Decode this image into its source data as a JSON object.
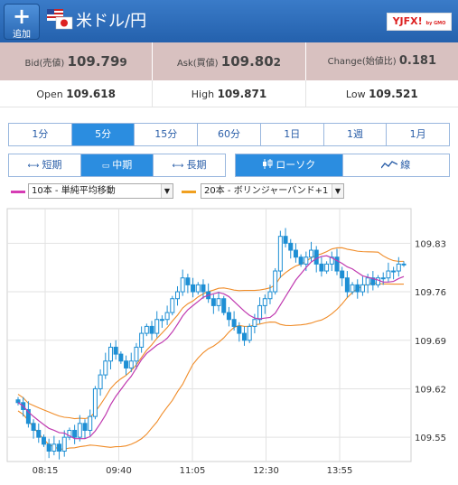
{
  "header": {
    "add_label": "追加",
    "pair_name": "米ドル/円",
    "logo_text": "YJFX!",
    "logo_sub": "by GMO",
    "flag_icons": [
      "us-flag-icon",
      "jp-flag-icon"
    ]
  },
  "quotes": {
    "bid_label": "Bid(売値)",
    "bid_main": "109.79",
    "bid_last": "9",
    "ask_label": "Ask(買値)",
    "ask_main": "109.80",
    "ask_last": "2",
    "change_label": "Change(始値比)",
    "change_value": "0.181"
  },
  "ohl": {
    "open_label": "Open",
    "open_value": "109.618",
    "high_label": "High",
    "high_value": "109.871",
    "low_label": "Low",
    "low_value": "109.521"
  },
  "periods": [
    {
      "label": "1分",
      "active": false
    },
    {
      "label": "5分",
      "active": true
    },
    {
      "label": "15分",
      "active": false
    },
    {
      "label": "60分",
      "active": false
    },
    {
      "label": "1日",
      "active": false
    },
    {
      "label": "1週",
      "active": false
    },
    {
      "label": "1月",
      "active": false
    }
  ],
  "ranges": [
    {
      "label": "短期",
      "icon": "⟷",
      "active": false
    },
    {
      "label": "中期",
      "icon": "▭",
      "active": true
    },
    {
      "label": "長期",
      "icon": "⟷",
      "active": false
    }
  ],
  "chart_types": [
    {
      "label": "ローソク",
      "icon": "candlestick-icon",
      "active": true
    },
    {
      "label": "線",
      "icon": "line-chart-icon",
      "active": false
    }
  ],
  "indicators": {
    "ind1": {
      "label": "10本 - 単純平均移動",
      "color": "#d63cb4"
    },
    "ind2": {
      "label": "20本 - ボリンジャーバンド+1",
      "color": "#f0a020"
    }
  },
  "chart_data": {
    "type": "candlestick",
    "x_ticks": [
      "08:15",
      "09:40",
      "11:05",
      "12:30",
      "13:55"
    ],
    "y_ticks": [
      109.55,
      109.62,
      109.69,
      109.76,
      109.83
    ],
    "ylim": [
      109.515,
      109.88
    ],
    "candle_color": "#1e8fd4",
    "sma_color": "#c03ab0",
    "band_color": "#f08c28",
    "closes": [
      109.6,
      109.59,
      109.57,
      109.56,
      109.55,
      109.54,
      109.53,
      109.54,
      109.53,
      109.55,
      109.56,
      109.55,
      109.57,
      109.56,
      109.58,
      109.62,
      109.64,
      109.66,
      109.68,
      109.67,
      109.66,
      109.65,
      109.66,
      109.68,
      109.7,
      109.71,
      109.7,
      109.72,
      109.72,
      109.73,
      109.75,
      109.76,
      109.78,
      109.77,
      109.76,
      109.77,
      109.76,
      109.75,
      109.74,
      109.75,
      109.73,
      109.72,
      109.71,
      109.7,
      109.69,
      109.71,
      109.72,
      109.74,
      109.75,
      109.76,
      109.79,
      109.84,
      109.83,
      109.82,
      109.81,
      109.8,
      109.81,
      109.82,
      109.8,
      109.79,
      109.8,
      109.81,
      109.79,
      109.78,
      109.76,
      109.77,
      109.76,
      109.77,
      109.78,
      109.77,
      109.78,
      109.78,
      109.79,
      109.79,
      109.8,
      109.8
    ]
  }
}
